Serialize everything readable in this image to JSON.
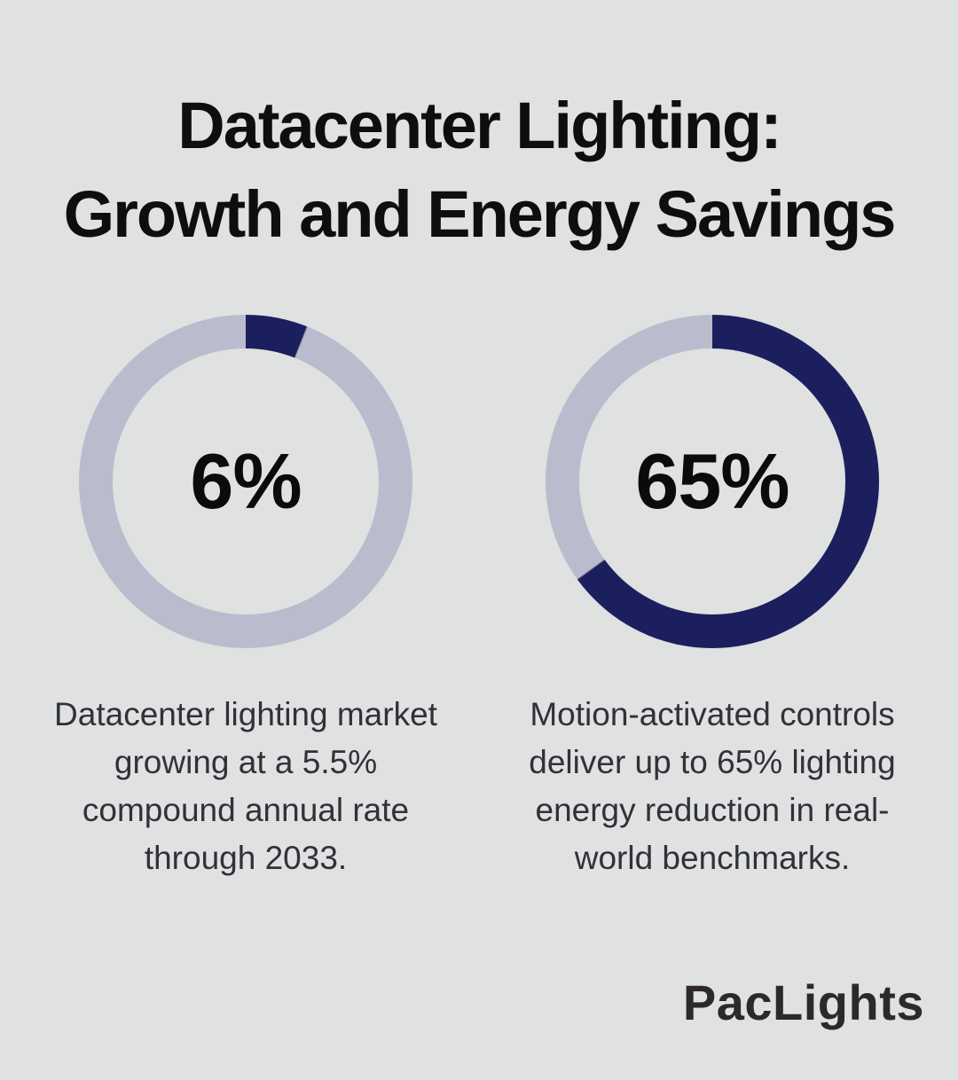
{
  "title": {
    "line1": "Datacenter Lighting:",
    "line2": "Growth and Energy Savings"
  },
  "chart_data": [
    {
      "type": "pie",
      "style": "donut",
      "label": "6%",
      "value": 6,
      "remainder": 94,
      "unit": "%",
      "start_angle_deg": 0,
      "direction": "clockwise",
      "caption": "Datacenter lighting market\ngrowing at a 5.5%\ncompound annual rate\nthrough 2033.",
      "colors": {
        "value": "#1c1f5e",
        "remainder": "#babcce"
      }
    },
    {
      "type": "pie",
      "style": "donut",
      "label": "65%",
      "value": 65,
      "remainder": 35,
      "unit": "%",
      "start_angle_deg": 0,
      "direction": "clockwise",
      "caption": "Motion-activated controls\ndeliver up to 65% lighting\nenergy reduction in real-\nworld benchmarks.",
      "colors": {
        "value": "#1c1f5e",
        "remainder": "#babcce"
      }
    }
  ],
  "branding": {
    "logo_text": "PacLights"
  },
  "colors": {
    "background": "#e0e1e1",
    "title_text": "#0e0e10",
    "percent_text": "#0b0b0e",
    "caption_text": "#30313a",
    "logo_text": "#2d292b",
    "ring_value": "#1c1f5e",
    "ring_track": "#babcce"
  }
}
